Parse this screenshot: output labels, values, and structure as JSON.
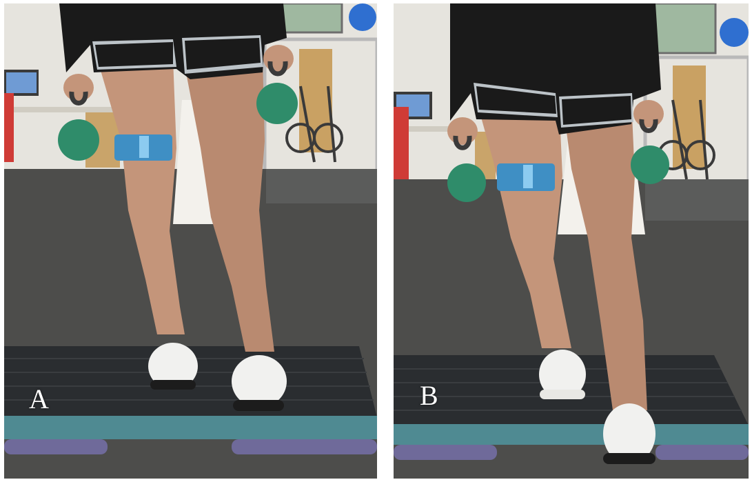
{
  "panels": [
    {
      "label": "A"
    },
    {
      "label": "B"
    }
  ],
  "colors": {
    "wall": "#e6e4de",
    "floor": "#4d4d4b",
    "step_platform": "#2a2d30",
    "step_base": "#4f8a92",
    "kettlebell": "#2f8c6a",
    "strap": "#3f8fc4",
    "skin": "#c4957a",
    "shorts": "#1a1a1a"
  }
}
